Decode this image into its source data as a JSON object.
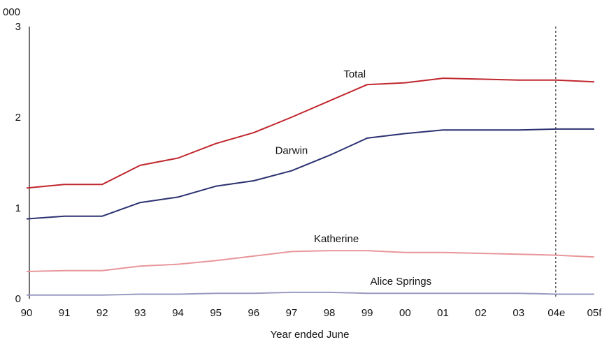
{
  "chart_data": {
    "type": "line",
    "title": "",
    "y_unit_label": "000",
    "xlabel": "Year ended June",
    "ylabel": "",
    "ylim": [
      0,
      3
    ],
    "yticks": [
      0,
      1,
      2,
      3
    ],
    "categories": [
      "90",
      "91",
      "92",
      "93",
      "94",
      "95",
      "96",
      "97",
      "98",
      "99",
      "00",
      "01",
      "02",
      "03",
      "04e",
      "05f"
    ],
    "marker_line_at": "04e",
    "grid": false,
    "legend": "none",
    "series": [
      {
        "name": "Total",
        "color": "#c0262d",
        "values": [
          1.22,
          1.26,
          1.26,
          1.47,
          1.55,
          1.71,
          1.83,
          2.0,
          2.18,
          2.36,
          2.38,
          2.43,
          2.42,
          2.41,
          2.41,
          2.39
        ]
      },
      {
        "name": "Darwin",
        "color": "#2b3170",
        "values": [
          0.88,
          0.91,
          0.91,
          1.06,
          1.12,
          1.24,
          1.3,
          1.41,
          1.58,
          1.77,
          1.82,
          1.86,
          1.86,
          1.86,
          1.87,
          1.87
        ]
      },
      {
        "name": "Katherine",
        "color": "#e8969a",
        "values": [
          0.3,
          0.31,
          0.31,
          0.36,
          0.38,
          0.42,
          0.47,
          0.52,
          0.53,
          0.53,
          0.51,
          0.51,
          0.5,
          0.49,
          0.48,
          0.46
        ]
      },
      {
        "name": "Alice Springs",
        "color": "#9a9ac0",
        "values": [
          0.04,
          0.04,
          0.04,
          0.05,
          0.05,
          0.06,
          0.06,
          0.07,
          0.07,
          0.06,
          0.06,
          0.06,
          0.06,
          0.06,
          0.05,
          0.05
        ]
      }
    ]
  }
}
